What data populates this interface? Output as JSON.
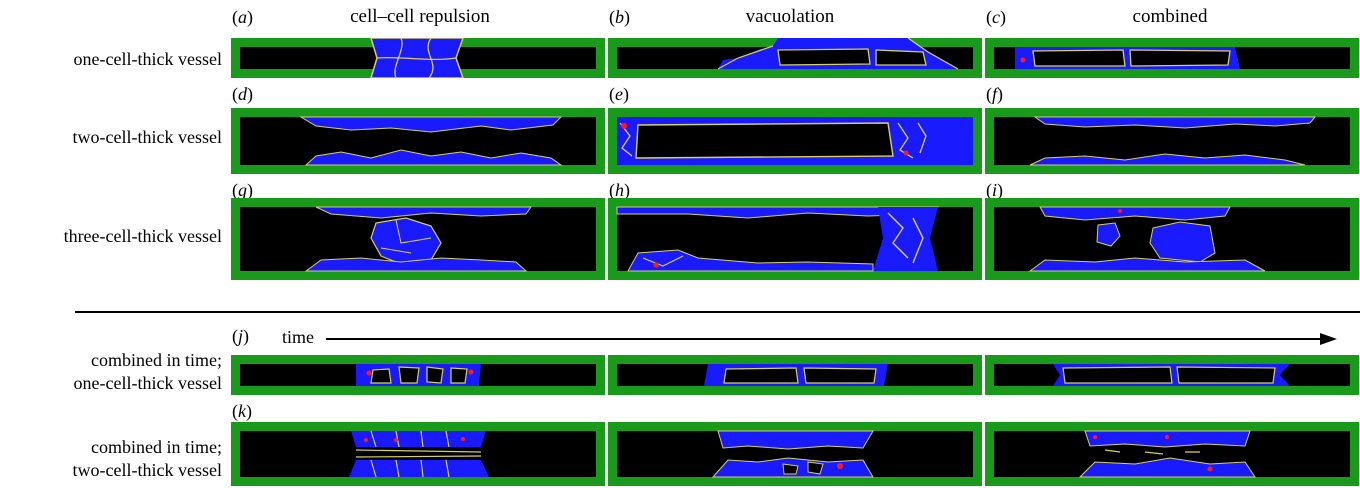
{
  "columns": [
    {
      "letter": "a",
      "title": "cell–cell repulsion"
    },
    {
      "letter": "b",
      "title": "vacuolation"
    },
    {
      "letter": "c",
      "title": "combined"
    }
  ],
  "rows": [
    {
      "label": "one-cell-thick vessel",
      "letters": [
        "a",
        "b",
        "c"
      ]
    },
    {
      "label": "two-cell-thick vessel",
      "letters": [
        "d",
        "e",
        "f"
      ]
    },
    {
      "label": "three-cell-thick vessel",
      "letters": [
        "g",
        "h",
        "i"
      ]
    }
  ],
  "time_rows": [
    {
      "letter": "j",
      "label_line1": "combined in time;",
      "label_line2": "one-cell-thick vessel"
    },
    {
      "letter": "k",
      "label_line1": "combined in time;",
      "label_line2": "two-cell-thick vessel"
    }
  ],
  "time_label": "time",
  "colors": {
    "border": "#1a9a1a",
    "lumen": "#000000",
    "cell": "#1a1aff",
    "membrane": "#d8d060",
    "marker": "#ff1a1a"
  }
}
